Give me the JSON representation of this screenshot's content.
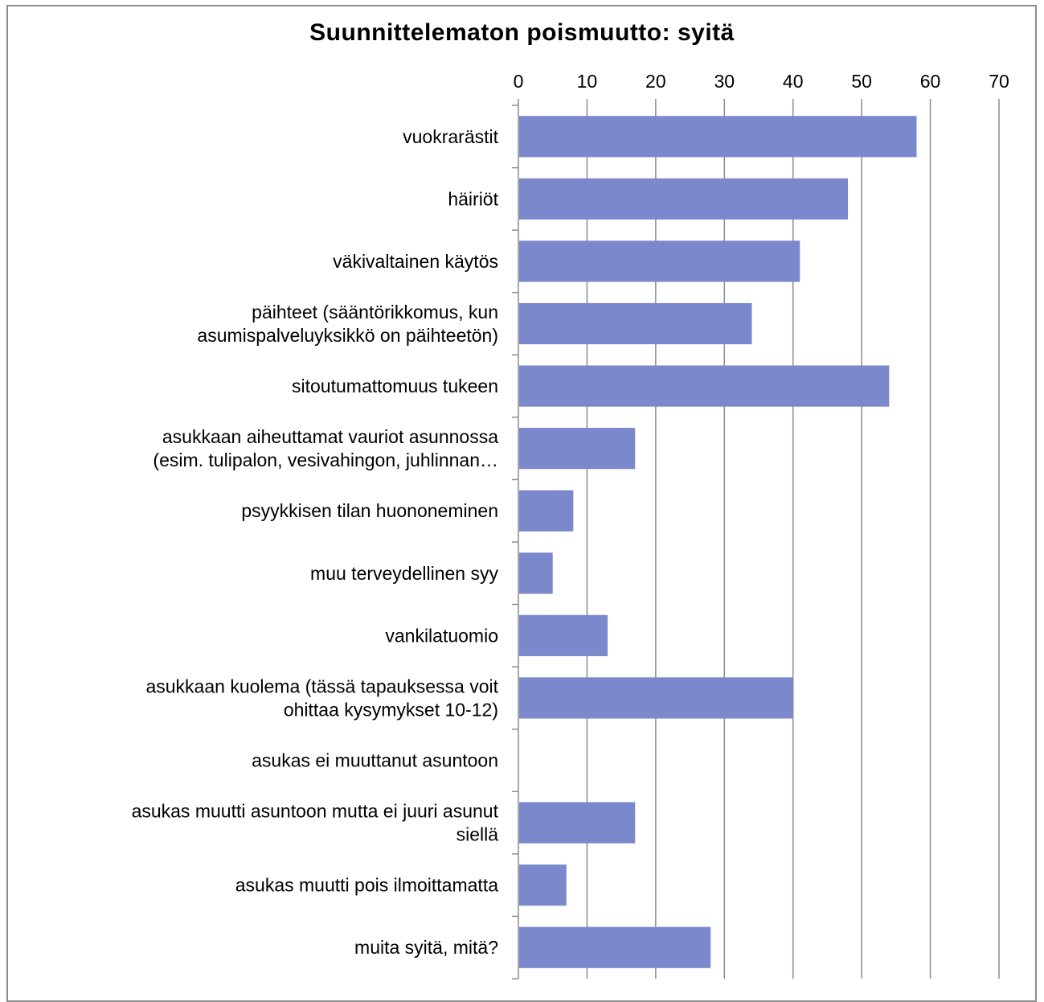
{
  "chart_data": {
    "type": "bar",
    "orientation": "horizontal",
    "title": "Suunnittelematon poismuutto: syitä",
    "xlabel": "",
    "ylabel": "",
    "xlim": [
      0,
      70
    ],
    "x_ticks": [
      "0",
      "10",
      "20",
      "30",
      "40",
      "50",
      "60",
      "70"
    ],
    "x_axis_position": "top",
    "grid": true,
    "legend": "none",
    "bar_color": "#7b88cc",
    "categories": [
      "vuokrarästit",
      "häiriöt",
      "väkivaltainen käytös",
      "päihteet (sääntörikkomus, kun asumispalveluyksikkö on päihteetön)",
      "sitoutumattomuus tukeen",
      "asukkaan aiheuttamat vauriot asunnossa (esim. tulipalon, vesivahingon, juhlinnan…",
      "psyykkisen tilan huononeminen",
      "muu terveydellinen syy",
      "vankilatuomio",
      "asukkaan kuolema (tässä tapauksessa voit ohittaa kysymykset 10-12)",
      "asukas ei muuttanut asuntoon",
      "asukas muutti asuntoon mutta ei juuri asunut siellä",
      "asukas muutti pois ilmoittamatta",
      "muita syitä, mitä?"
    ],
    "category_lines": [
      [
        "vuokrarästit"
      ],
      [
        "häiriöt"
      ],
      [
        "väkivaltainen käytös"
      ],
      [
        "päihteet (sääntörikkomus, kun",
        "asumispalveluyksikkö on päihteetön)"
      ],
      [
        "sitoutumattomuus tukeen"
      ],
      [
        "asukkaan aiheuttamat vauriot asunnossa",
        "(esim. tulipalon, vesivahingon, juhlinnan…"
      ],
      [
        "psyykkisen tilan huononeminen"
      ],
      [
        "muu terveydellinen syy"
      ],
      [
        "vankilatuomio"
      ],
      [
        "asukkaan kuolema (tässä tapauksessa voit",
        "ohittaa kysymykset 10-12)"
      ],
      [
        "asukas ei muuttanut asuntoon"
      ],
      [
        "asukas muutti asuntoon mutta ei juuri asunut",
        "siellä"
      ],
      [
        "asukas muutti pois ilmoittamatta"
      ],
      [
        "muita syitä, mitä?"
      ]
    ],
    "values": [
      58,
      48,
      41,
      34,
      54,
      17,
      8,
      5,
      13,
      40,
      0,
      17,
      7,
      28
    ]
  }
}
